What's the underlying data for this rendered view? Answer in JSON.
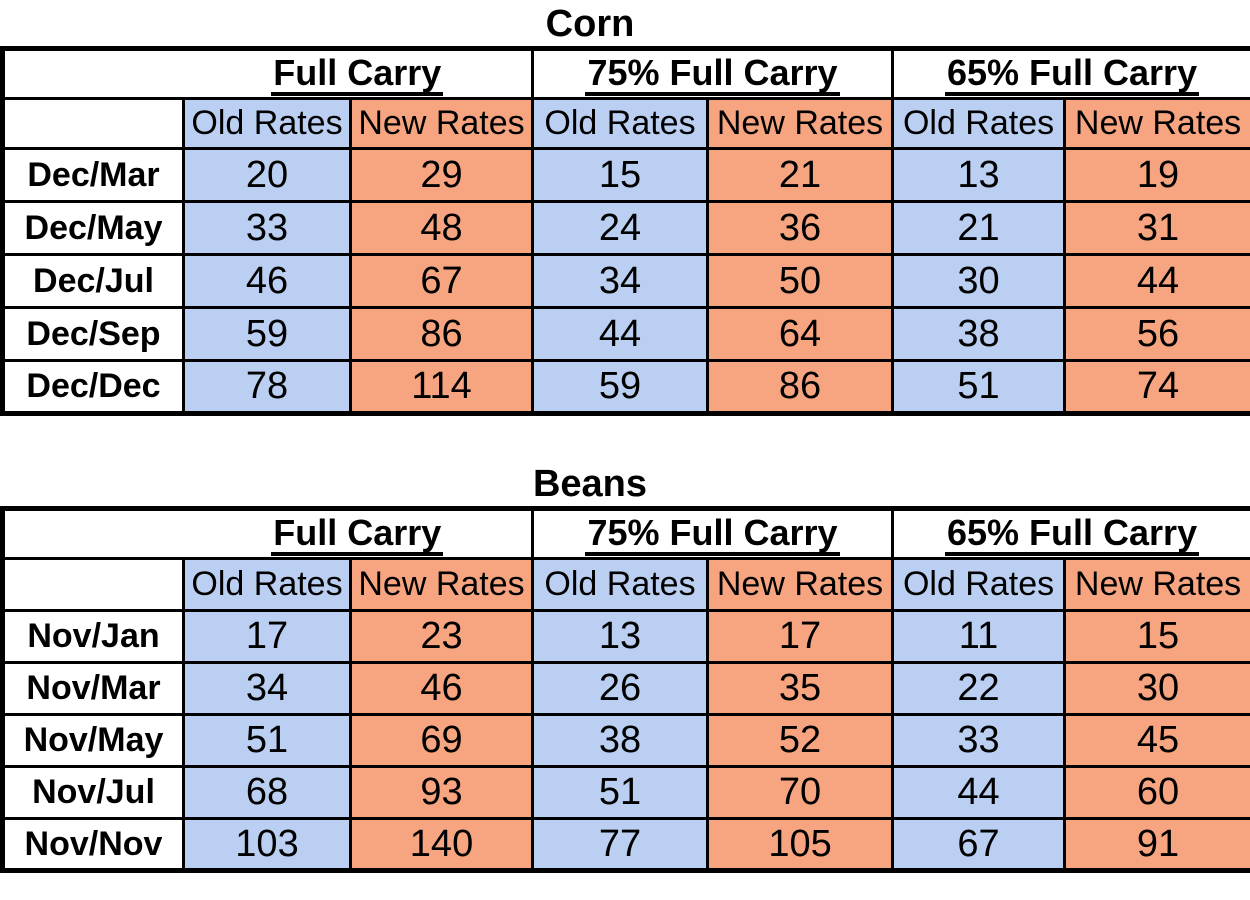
{
  "colors": {
    "old_rates_fill": "#BACFF1",
    "new_rates_fill": "#F6A580",
    "border": "#000000",
    "text": "#000000",
    "background": "#FFFFFF"
  },
  "tables": [
    {
      "title": "Corn",
      "group_headers": [
        "Full Carry",
        "75% Full Carry",
        "65% Full Carry"
      ],
      "sub_headers": [
        "Old Rates",
        "New Rates",
        "Old Rates",
        "New Rates",
        "Old Rates",
        "New Rates"
      ],
      "rows": [
        {
          "label": "Dec/Mar",
          "values": [
            20,
            29,
            15,
            21,
            13,
            19
          ]
        },
        {
          "label": "Dec/May",
          "values": [
            33,
            48,
            24,
            36,
            21,
            31
          ]
        },
        {
          "label": "Dec/Jul",
          "values": [
            46,
            67,
            34,
            50,
            30,
            44
          ]
        },
        {
          "label": "Dec/Sep",
          "values": [
            59,
            86,
            44,
            64,
            38,
            56
          ]
        },
        {
          "label": "Dec/Dec",
          "values": [
            78,
            114,
            59,
            86,
            51,
            74
          ]
        }
      ]
    },
    {
      "title": "Beans",
      "group_headers": [
        "Full Carry",
        "75% Full Carry",
        "65% Full Carry"
      ],
      "sub_headers": [
        "Old Rates",
        "New Rates",
        "Old Rates",
        "New Rates",
        "Old Rates",
        "New Rates"
      ],
      "rows": [
        {
          "label": "Nov/Jan",
          "values": [
            17,
            23,
            13,
            17,
            11,
            15
          ]
        },
        {
          "label": "Nov/Mar",
          "values": [
            34,
            46,
            26,
            35,
            22,
            30
          ]
        },
        {
          "label": "Nov/May",
          "values": [
            51,
            69,
            38,
            52,
            33,
            45
          ]
        },
        {
          "label": "Nov/Jul",
          "values": [
            68,
            93,
            51,
            70,
            44,
            60
          ]
        },
        {
          "label": "Nov/Nov",
          "values": [
            103,
            140,
            77,
            105,
            67,
            91
          ]
        }
      ]
    }
  ]
}
